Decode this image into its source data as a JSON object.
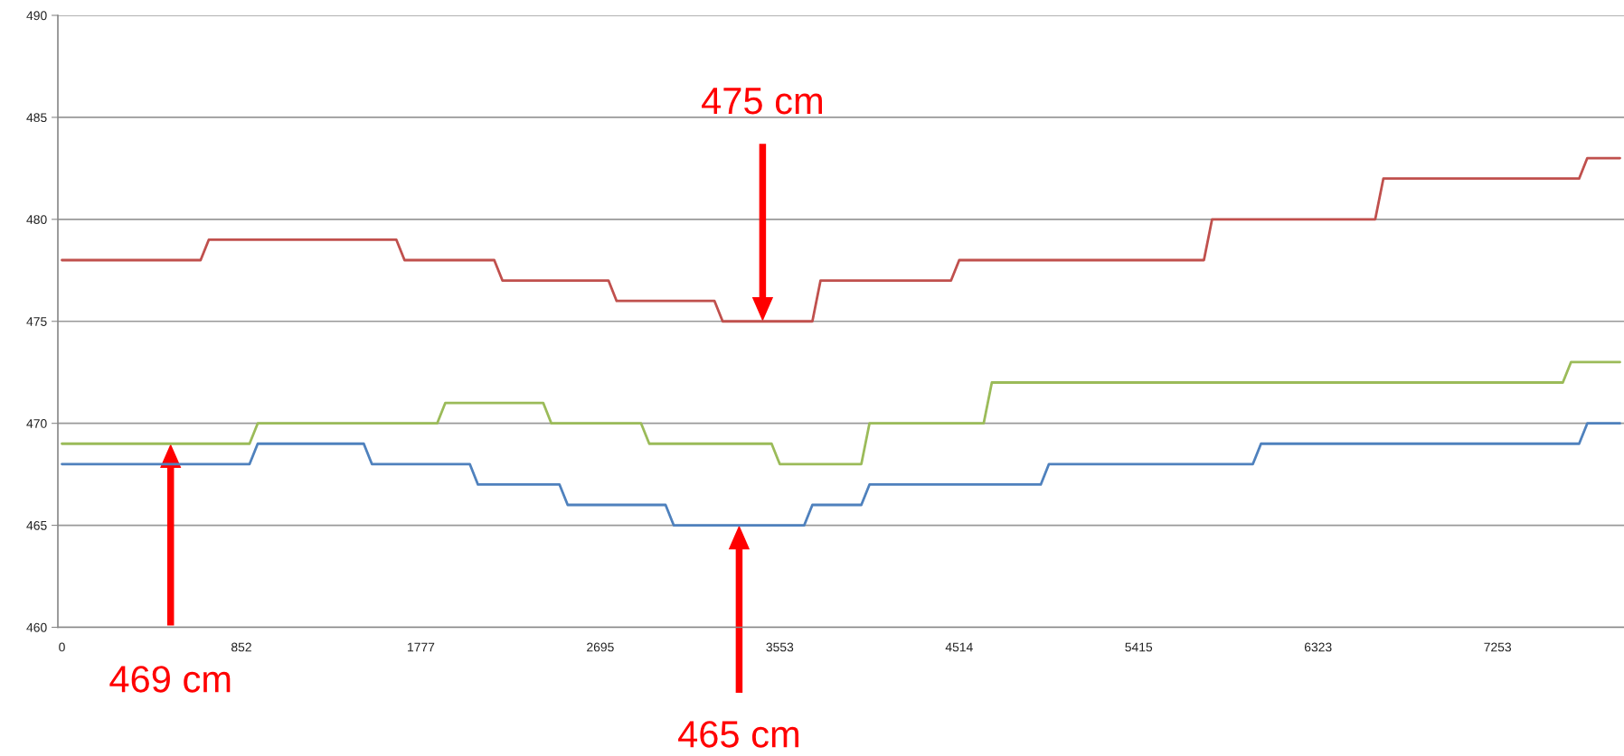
{
  "chart_data": {
    "type": "line",
    "categories": [
      "0",
      null,
      null,
      null,
      null,
      null,
      null,
      null,
      null,
      null,
      null,
      null,
      null,
      null,
      null,
      null,
      null,
      null,
      null,
      null,
      null,
      null,
      "852",
      null,
      null,
      null,
      null,
      null,
      null,
      null,
      null,
      null,
      null,
      null,
      null,
      null,
      null,
      null,
      null,
      null,
      null,
      null,
      null,
      null,
      "1777",
      null,
      null,
      null,
      null,
      null,
      null,
      null,
      null,
      null,
      null,
      null,
      null,
      null,
      null,
      null,
      null,
      null,
      null,
      null,
      null,
      null,
      "2695",
      null,
      null,
      null,
      null,
      null,
      null,
      null,
      null,
      null,
      null,
      null,
      null,
      null,
      null,
      null,
      null,
      null,
      null,
      null,
      null,
      null,
      "3553",
      null,
      null,
      null,
      null,
      null,
      null,
      null,
      null,
      null,
      null,
      null,
      null,
      null,
      null,
      null,
      null,
      null,
      null,
      null,
      null,
      null,
      "4514",
      null,
      null,
      null,
      null,
      null,
      null,
      null,
      null,
      null,
      null,
      null,
      null,
      null,
      null,
      null,
      null,
      null,
      null,
      null,
      null,
      null,
      "5415",
      null,
      null,
      null,
      null,
      null,
      null,
      null,
      null,
      null,
      null,
      null,
      null,
      null,
      null,
      null,
      null,
      null,
      null,
      null,
      null,
      null,
      "6323",
      null,
      null,
      null,
      null,
      null,
      null,
      null,
      null,
      null,
      null,
      null,
      null,
      null,
      null,
      null,
      null,
      null,
      null,
      null,
      null,
      null,
      "7253",
      null,
      null,
      null,
      null,
      null,
      null,
      null,
      null,
      null,
      null,
      null,
      null,
      null,
      null,
      null
    ],
    "series": [
      {
        "color": "#c0504d",
        "values": [
          478,
          478,
          478,
          478,
          478,
          478,
          478,
          478,
          478,
          478,
          478,
          478,
          478,
          478,
          478,
          478,
          478,
          478,
          479,
          479,
          479,
          479,
          479,
          479,
          479,
          479,
          479,
          479,
          479,
          479,
          479,
          479,
          479,
          479,
          479,
          479,
          479,
          479,
          479,
          479,
          479,
          479,
          478,
          478,
          478,
          478,
          478,
          478,
          478,
          478,
          478,
          478,
          478,
          478,
          477,
          477,
          477,
          477,
          477,
          477,
          477,
          477,
          477,
          477,
          477,
          477,
          477,
          477,
          476,
          476,
          476,
          476,
          476,
          476,
          476,
          476,
          476,
          476,
          476,
          476,
          476,
          475,
          475,
          475,
          475,
          475,
          475,
          475,
          475,
          475,
          475,
          475,
          475,
          477,
          477,
          477,
          477,
          477,
          477,
          477,
          477,
          477,
          477,
          477,
          477,
          477,
          477,
          477,
          477,
          477,
          478,
          478,
          478,
          478,
          478,
          478,
          478,
          478,
          478,
          478,
          478,
          478,
          478,
          478,
          478,
          478,
          478,
          478,
          478,
          478,
          478,
          478,
          478,
          478,
          478,
          478,
          478,
          478,
          478,
          478,
          478,
          480,
          480,
          480,
          480,
          480,
          480,
          480,
          480,
          480,
          480,
          480,
          480,
          480,
          480,
          480,
          480,
          480,
          480,
          480,
          480,
          480,
          482,
          482,
          482,
          482,
          482,
          482,
          482,
          482,
          482,
          482,
          482,
          482,
          482,
          482,
          482,
          482,
          482,
          482,
          482,
          482,
          482,
          482,
          482,
          482,
          482,
          483,
          483,
          483,
          483,
          483
        ]
      },
      {
        "color": "#9bbb59",
        "values": [
          469,
          469,
          469,
          469,
          469,
          469,
          469,
          469,
          469,
          469,
          469,
          469,
          469,
          469,
          469,
          469,
          469,
          469,
          469,
          469,
          469,
          469,
          469,
          469,
          470,
          470,
          470,
          470,
          470,
          470,
          470,
          470,
          470,
          470,
          470,
          470,
          470,
          470,
          470,
          470,
          470,
          470,
          470,
          470,
          470,
          470,
          470,
          471,
          471,
          471,
          471,
          471,
          471,
          471,
          471,
          471,
          471,
          471,
          471,
          471,
          470,
          470,
          470,
          470,
          470,
          470,
          470,
          470,
          470,
          470,
          470,
          470,
          469,
          469,
          469,
          469,
          469,
          469,
          469,
          469,
          469,
          469,
          469,
          469,
          469,
          469,
          469,
          469,
          468,
          468,
          468,
          468,
          468,
          468,
          468,
          468,
          468,
          468,
          468,
          470,
          470,
          470,
          470,
          470,
          470,
          470,
          470,
          470,
          470,
          470,
          470,
          470,
          470,
          470,
          472,
          472,
          472,
          472,
          472,
          472,
          472,
          472,
          472,
          472,
          472,
          472,
          472,
          472,
          472,
          472,
          472,
          472,
          472,
          472,
          472,
          472,
          472,
          472,
          472,
          472,
          472,
          472,
          472,
          472,
          472,
          472,
          472,
          472,
          472,
          472,
          472,
          472,
          472,
          472,
          472,
          472,
          472,
          472,
          472,
          472,
          472,
          472,
          472,
          472,
          472,
          472,
          472,
          472,
          472,
          472,
          472,
          472,
          472,
          472,
          472,
          472,
          472,
          472,
          472,
          472,
          472,
          472,
          472,
          472,
          472,
          473,
          473,
          473,
          473,
          473,
          473,
          473
        ]
      },
      {
        "color": "#4f81bd",
        "values": [
          468,
          468,
          468,
          468,
          468,
          468,
          468,
          468,
          468,
          468,
          468,
          468,
          468,
          468,
          468,
          468,
          468,
          468,
          468,
          468,
          468,
          468,
          468,
          468,
          469,
          469,
          469,
          469,
          469,
          469,
          469,
          469,
          469,
          469,
          469,
          469,
          469,
          469,
          468,
          468,
          468,
          468,
          468,
          468,
          468,
          468,
          468,
          468,
          468,
          468,
          468,
          467,
          467,
          467,
          467,
          467,
          467,
          467,
          467,
          467,
          467,
          467,
          466,
          466,
          466,
          466,
          466,
          466,
          466,
          466,
          466,
          466,
          466,
          466,
          466,
          465,
          465,
          465,
          465,
          465,
          465,
          465,
          465,
          465,
          465,
          465,
          465,
          465,
          465,
          465,
          465,
          465,
          466,
          466,
          466,
          466,
          466,
          466,
          466,
          467,
          467,
          467,
          467,
          467,
          467,
          467,
          467,
          467,
          467,
          467,
          467,
          467,
          467,
          467,
          467,
          467,
          467,
          467,
          467,
          467,
          467,
          468,
          468,
          468,
          468,
          468,
          468,
          468,
          468,
          468,
          468,
          468,
          468,
          468,
          468,
          468,
          468,
          468,
          468,
          468,
          468,
          468,
          468,
          468,
          468,
          468,
          468,
          469,
          469,
          469,
          469,
          469,
          469,
          469,
          469,
          469,
          469,
          469,
          469,
          469,
          469,
          469,
          469,
          469,
          469,
          469,
          469,
          469,
          469,
          469,
          469,
          469,
          469,
          469,
          469,
          469,
          469,
          469,
          469,
          469,
          469,
          469,
          469,
          469,
          469,
          469,
          469,
          470,
          470,
          470,
          470,
          470
        ]
      }
    ],
    "ylim": [
      460,
      490
    ],
    "yticks": [
      460,
      465,
      470,
      475,
      480,
      485,
      490
    ],
    "grid": "y",
    "marker": "none",
    "line_style": "solid",
    "annotations": [
      "475 cm",
      "469 cm",
      "465 cm"
    ]
  }
}
